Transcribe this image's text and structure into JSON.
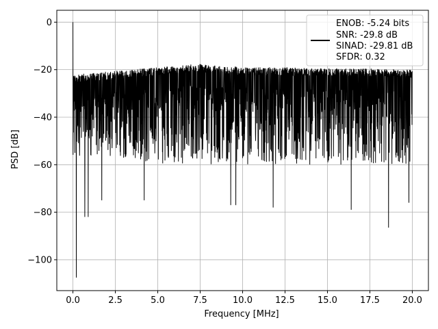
{
  "chart_data": {
    "type": "line",
    "title": "",
    "xlabel": "Frequency [MHz]",
    "ylabel": "PSD [dB]",
    "xlim": [
      -0.95,
      20.95
    ],
    "ylim": [
      -113,
      5
    ],
    "x_ticks": [
      0.0,
      2.5,
      5.0,
      7.5,
      10.0,
      12.5,
      15.0,
      17.5,
      20.0
    ],
    "x_tick_labels": [
      "0.0",
      "2.5",
      "5.0",
      "7.5",
      "10.0",
      "12.5",
      "15.0",
      "17.5",
      "20.0"
    ],
    "y_ticks": [
      0,
      -20,
      -40,
      -60,
      -80,
      -100
    ],
    "y_tick_labels": [
      "0",
      "−20",
      "−40",
      "−60",
      "−80",
      "−100"
    ],
    "grid": true,
    "legend_position": "top-right",
    "series": [
      {
        "name": "",
        "color": "#000000",
        "x_range": [
          0.0,
          20.0
        ],
        "upper_envelope": [
          [
            0.0,
            -22
          ],
          [
            2.5,
            -20.5
          ],
          [
            5.0,
            -19
          ],
          [
            7.5,
            -17.5
          ],
          [
            10.0,
            -19
          ],
          [
            12.5,
            -19
          ],
          [
            15.0,
            -19.5
          ],
          [
            17.5,
            -19.5
          ],
          [
            20.0,
            -20
          ]
        ],
        "lower_envelope": [
          [
            0.0,
            -56
          ],
          [
            5.0,
            -60
          ],
          [
            10.0,
            -60
          ],
          [
            15.0,
            -60
          ],
          [
            20.0,
            -60
          ]
        ],
        "peaks": [
          {
            "x": 0.0,
            "y": 0
          }
        ],
        "dips": [
          {
            "x": 0.2,
            "y": -107.5
          },
          {
            "x": 0.7,
            "y": -82
          },
          {
            "x": 0.9,
            "y": -82
          },
          {
            "x": 1.7,
            "y": -75
          },
          {
            "x": 4.2,
            "y": -75
          },
          {
            "x": 9.3,
            "y": -77
          },
          {
            "x": 9.6,
            "y": -77
          },
          {
            "x": 11.8,
            "y": -78
          },
          {
            "x": 16.4,
            "y": -79
          },
          {
            "x": 18.6,
            "y": -86.5
          },
          {
            "x": 19.8,
            "y": -76
          }
        ]
      }
    ],
    "legend_lines": [
      "ENOB: -5.24 bits",
      "SNR: -29.8 dB",
      "SINAD: -29.81 dB",
      "SFDR: 0.32"
    ]
  }
}
